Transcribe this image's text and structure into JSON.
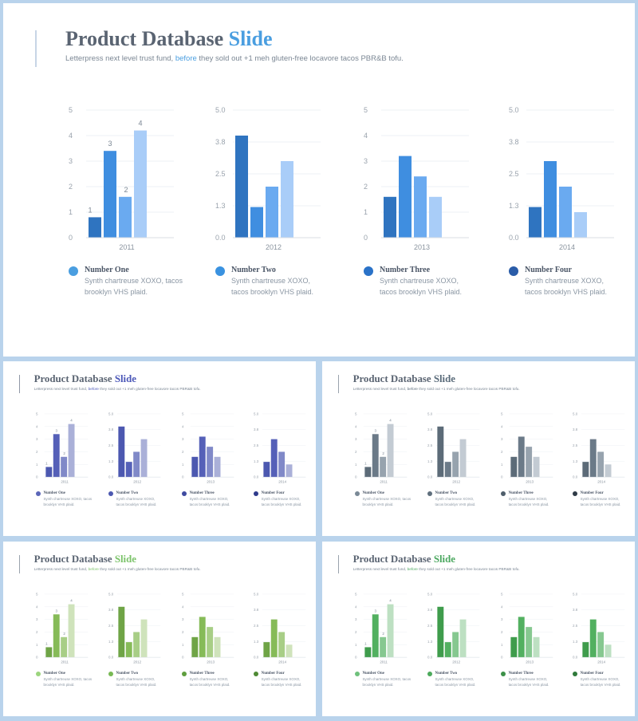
{
  "slide": {
    "title_main": "Product Database ",
    "title_accent": "Slide",
    "subtitle_pre": "Letterpress next level trust fund, ",
    "subtitle_highlight": "before",
    "subtitle_post": " they sold out +1 meh gluten-free locavore tacos PBR&B tofu."
  },
  "legend": [
    {
      "title": "Number One",
      "line1": "Synth chartreuse XOXO, tacos",
      "line2": "brooklyn VHS plaid."
    },
    {
      "title": "Number Two",
      "line1": "Synth chartreuse XOXO,",
      "line2": "tacos brooklyn VHS plaid."
    },
    {
      "title": "Number Three",
      "line1": "Synth chartreuse XOXO,",
      "line2": "tacos brooklyn VHS plaid."
    },
    {
      "title": "Number Four",
      "line1": "Synth chartreuse XOXO,",
      "line2": "tacos brooklyn VHS plaid."
    }
  ],
  "chart_data": [
    {
      "type": "bar",
      "categories": [
        "2011"
      ],
      "series_values": [
        0.8,
        3.4,
        1.6,
        4.2
      ],
      "data_labels": [
        "1",
        "3",
        "2",
        "4"
      ],
      "yticks": [
        "0",
        "1",
        "2",
        "3",
        "4",
        "5"
      ],
      "ylim": [
        0,
        5
      ],
      "grid": true
    },
    {
      "type": "bar",
      "categories": [
        "2012"
      ],
      "series_values": [
        4.0,
        1.2,
        2.0,
        3.0
      ],
      "data_labels": [],
      "yticks": [
        "0.0",
        "1.3",
        "2.5",
        "3.8",
        "5.0"
      ],
      "ylim": [
        0,
        5
      ],
      "grid": true
    },
    {
      "type": "bar",
      "categories": [
        "2013"
      ],
      "series_values": [
        1.6,
        3.2,
        2.4,
        1.6
      ],
      "data_labels": [],
      "yticks": [
        "0",
        "1",
        "2",
        "3",
        "4",
        "5"
      ],
      "ylim": [
        0,
        5
      ],
      "grid": true
    },
    {
      "type": "bar",
      "categories": [
        "2014"
      ],
      "series_values": [
        1.2,
        3.0,
        2.0,
        1.0
      ],
      "data_labels": [],
      "yticks": [
        "0.0",
        "1.3",
        "2.5",
        "3.8",
        "5.0"
      ],
      "ylim": [
        0,
        5
      ],
      "grid": true
    }
  ],
  "themes": {
    "main": {
      "accent": "#4a9ee0",
      "bar": "#4a90e2",
      "bars": [
        "#2f74c0",
        "#3f8ee0",
        "#6aaaf0",
        "#a9cdf8"
      ],
      "dots": [
        "#4a9ee0",
        "#3a92e0",
        "#2a72c8",
        "#2a5ca8"
      ],
      "bar_line": "#c7d5e6"
    },
    "blue": {
      "accent": "#4c58b8",
      "bars": [
        "#4c58b0",
        "#5560b8",
        "#8089c8",
        "#aab0d8"
      ],
      "dots": [
        "#5b66b8",
        "#4c58b0",
        "#3f4aa0",
        "#2f3a8c"
      ],
      "bar_line": "#9098a6"
    },
    "slate": {
      "accent": "#5a6b7a",
      "bars": [
        "#5c6b78",
        "#6b7a88",
        "#97a3ae",
        "#c3cbd3"
      ],
      "dots": [
        "#7a8996",
        "#5f6f7d",
        "#4f5e6b",
        "#2f3a46"
      ],
      "bar_line": "#9aa3ad"
    },
    "green_light": {
      "accent": "#7cc36a",
      "bars": [
        "#6fa446",
        "#86bb58",
        "#a8ce86",
        "#cfe3bb"
      ],
      "dots": [
        "#9cd57e",
        "#78b954",
        "#5f9e3e",
        "#4f8a34"
      ],
      "bar_line": "#9aa3ad"
    },
    "green": {
      "accent": "#4ca860",
      "bars": [
        "#3f9c4c",
        "#52b060",
        "#86c890",
        "#bde0c2"
      ],
      "dots": [
        "#6fc17c",
        "#4caa5c",
        "#3c9048",
        "#2f7a3a"
      ],
      "bar_line": "#9aa3ad"
    }
  }
}
